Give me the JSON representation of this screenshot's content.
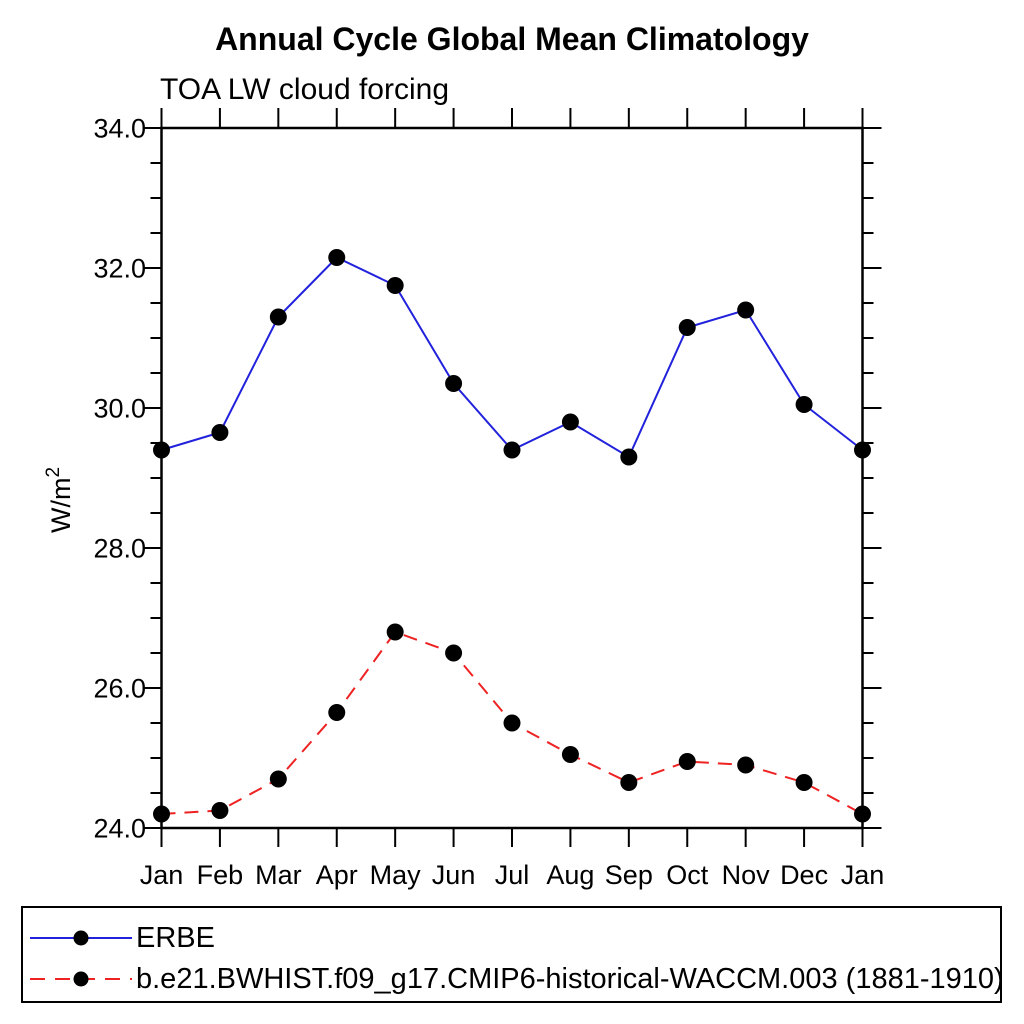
{
  "chart_data": {
    "type": "line",
    "title": "Annual Cycle Global Mean Climatology",
    "subtitle": "TOA LW cloud forcing",
    "ylabel_base": "W/m",
    "ylabel_exponent": "2",
    "categories": [
      "Jan",
      "Feb",
      "Mar",
      "Apr",
      "May",
      "Jun",
      "Jul",
      "Aug",
      "Sep",
      "Oct",
      "Nov",
      "Dec",
      "Jan"
    ],
    "series": [
      {
        "name": "ERBE",
        "line_style": "solid",
        "color": "#2222dd",
        "marker": "circle",
        "marker_color": "#000000",
        "values": [
          29.4,
          29.65,
          31.3,
          32.15,
          31.75,
          30.35,
          29.4,
          29.8,
          29.3,
          31.15,
          31.4,
          30.05,
          29.4
        ]
      },
      {
        "name": "b.e21.BWHIST.f09_g17.CMIP6-historical-WACCM.003 (1881-1910)",
        "line_style": "dashed",
        "color": "#ee2222",
        "marker": "circle",
        "marker_color": "#000000",
        "values": [
          24.2,
          24.25,
          24.7,
          25.65,
          26.8,
          26.5,
          25.5,
          25.05,
          24.65,
          24.95,
          24.9,
          24.65,
          24.2
        ]
      }
    ],
    "ylim": [
      24.0,
      34.0
    ],
    "y_major_ticks": [
      24,
      26,
      28,
      30,
      32,
      34
    ],
    "y_tick_labels": [
      "24.0",
      "26.0",
      "28.0",
      "30.0",
      "32.0",
      "34.0"
    ],
    "y_minor_step": 0.5,
    "grid": "off",
    "legend_position": "bottom",
    "axis_color": "#000000",
    "background_color": "#ffffff"
  }
}
